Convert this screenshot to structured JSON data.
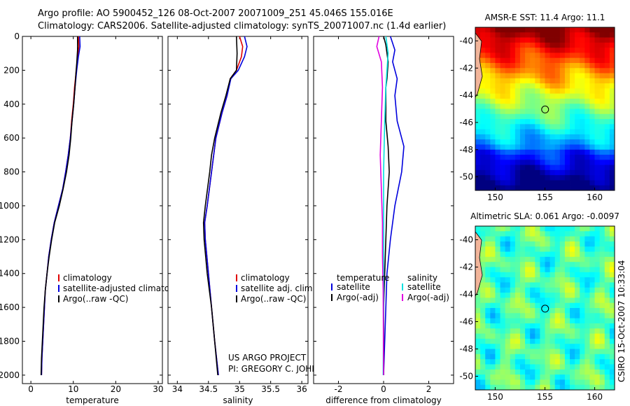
{
  "header": {
    "line1": "Argo profile: AO 5900452_126 08-Oct-2007 20071009_251 45.046S 155.016E",
    "line2": "Climatology: CARS2006. Satellite-adjusted climatology: synTS_20071007.nc (1.4d earlier)"
  },
  "credits": {
    "project": "US ARGO PROJECT",
    "pi": "PI: GREGORY C. JOHNSON",
    "stamp": "CSIRO 15-Oct-2007 10:33:04"
  },
  "colors": {
    "climatology": "#e00000",
    "satellite": "#0000dd",
    "argo": "#000000",
    "sal_satellite": "#00e0e0",
    "sal_argo": "#e000e0"
  },
  "chart_data": [
    {
      "type": "line",
      "id": "temperature",
      "xlabel": "temperature",
      "ylabel": "",
      "xlim": [
        -2,
        31
      ],
      "ylim": [
        2050,
        0
      ],
      "xticks": [
        0,
        10,
        20,
        30
      ],
      "yticks": [
        0,
        200,
        400,
        600,
        800,
        1000,
        1200,
        1400,
        1600,
        1800,
        2000
      ],
      "legend": [
        "climatology",
        "satellite-adjusted climatology",
        "Argo(..raw -QC)"
      ],
      "series": [
        {
          "name": "climatology",
          "color_key": "climatology",
          "points": [
            [
              11.2,
              0
            ],
            [
              11.3,
              60
            ],
            [
              11.0,
              120
            ],
            [
              10.7,
              200
            ],
            [
              10.3,
              300
            ],
            [
              10.0,
              400
            ],
            [
              9.6,
              500
            ],
            [
              9.3,
              600
            ],
            [
              8.8,
              700
            ],
            [
              8.2,
              800
            ],
            [
              7.5,
              900
            ],
            [
              6.5,
              1000
            ],
            [
              5.5,
              1100
            ],
            [
              4.8,
              1200
            ],
            [
              4.2,
              1300
            ],
            [
              3.8,
              1400
            ],
            [
              3.4,
              1500
            ],
            [
              3.2,
              1600
            ],
            [
              3.0,
              1700
            ],
            [
              2.8,
              1800
            ],
            [
              2.6,
              1900
            ],
            [
              2.5,
              2000
            ]
          ]
        },
        {
          "name": "satellite",
          "color_key": "satellite",
          "points": [
            [
              11.5,
              0
            ],
            [
              11.6,
              60
            ],
            [
              11.2,
              120
            ],
            [
              10.8,
              200
            ],
            [
              10.4,
              300
            ],
            [
              10.1,
              400
            ],
            [
              9.7,
              500
            ],
            [
              9.3,
              600
            ],
            [
              8.8,
              700
            ],
            [
              8.2,
              800
            ],
            [
              7.5,
              900
            ],
            [
              6.5,
              1000
            ],
            [
              5.5,
              1100
            ],
            [
              4.8,
              1200
            ],
            [
              4.2,
              1300
            ],
            [
              3.8,
              1400
            ],
            [
              3.4,
              1500
            ],
            [
              3.2,
              1600
            ],
            [
              3.0,
              1700
            ],
            [
              2.8,
              1800
            ],
            [
              2.6,
              1900
            ],
            [
              2.5,
              2000
            ]
          ]
        },
        {
          "name": "argo",
          "color_key": "argo",
          "points": [
            [
              11.0,
              0
            ],
            [
              11.0,
              80
            ],
            [
              10.8,
              160
            ],
            [
              10.6,
              220
            ],
            [
              10.4,
              300
            ],
            [
              10.1,
              400
            ],
            [
              9.7,
              500
            ],
            [
              9.4,
              600
            ],
            [
              9.0,
              700
            ],
            [
              8.4,
              800
            ],
            [
              7.6,
              900
            ],
            [
              6.7,
              1000
            ],
            [
              5.6,
              1100
            ],
            [
              4.9,
              1200
            ],
            [
              4.3,
              1300
            ],
            [
              3.8,
              1400
            ],
            [
              3.4,
              1500
            ],
            [
              3.1,
              1600
            ],
            [
              2.9,
              1700
            ],
            [
              2.7,
              1800
            ],
            [
              2.5,
              1900
            ],
            [
              2.4,
              2000
            ]
          ]
        }
      ]
    },
    {
      "type": "line",
      "id": "salinity",
      "xlabel": "salinity",
      "ylabel": "",
      "xlim": [
        33.85,
        36.1
      ],
      "ylim": [
        2050,
        0
      ],
      "xticks": [
        34,
        34.5,
        35,
        35.5,
        36
      ],
      "xtick_labels": [
        "34",
        "34.5",
        "35",
        "35.5",
        "36"
      ],
      "yticks": [
        0,
        200,
        400,
        600,
        800,
        1000,
        1200,
        1400,
        1600,
        1800,
        2000
      ],
      "legend": [
        "climatology",
        "satellite adj. clim.",
        "Argo(..raw -QC)"
      ],
      "series": [
        {
          "name": "climatology",
          "color_key": "climatology",
          "points": [
            [
              35.0,
              0
            ],
            [
              35.05,
              60
            ],
            [
              35.03,
              120
            ],
            [
              34.95,
              200
            ],
            [
              34.85,
              250
            ],
            [
              34.8,
              350
            ],
            [
              34.72,
              450
            ],
            [
              34.62,
              600
            ],
            [
              34.55,
              800
            ],
            [
              34.48,
              1000
            ],
            [
              34.44,
              1100
            ],
            [
              34.45,
              1200
            ],
            [
              34.5,
              1400
            ],
            [
              34.55,
              1600
            ],
            [
              34.6,
              1800
            ],
            [
              34.66,
              2000
            ]
          ]
        },
        {
          "name": "satellite",
          "color_key": "satellite",
          "points": [
            [
              35.08,
              0
            ],
            [
              35.12,
              60
            ],
            [
              35.08,
              120
            ],
            [
              34.98,
              200
            ],
            [
              34.86,
              250
            ],
            [
              34.8,
              350
            ],
            [
              34.72,
              450
            ],
            [
              34.62,
              600
            ],
            [
              34.55,
              800
            ],
            [
              34.48,
              1000
            ],
            [
              34.44,
              1100
            ],
            [
              34.45,
              1200
            ],
            [
              34.5,
              1400
            ],
            [
              34.55,
              1600
            ],
            [
              34.6,
              1800
            ],
            [
              34.66,
              2000
            ]
          ]
        },
        {
          "name": "argo",
          "color_key": "argo",
          "points": [
            [
              34.95,
              0
            ],
            [
              34.96,
              100
            ],
            [
              34.95,
              200
            ],
            [
              34.85,
              250
            ],
            [
              34.78,
              350
            ],
            [
              34.7,
              450
            ],
            [
              34.6,
              600
            ],
            [
              34.55,
              700
            ],
            [
              34.52,
              800
            ],
            [
              34.45,
              1000
            ],
            [
              34.42,
              1100
            ],
            [
              34.43,
              1200
            ],
            [
              34.48,
              1400
            ],
            [
              34.55,
              1600
            ],
            [
              34.6,
              1800
            ],
            [
              34.65,
              2000
            ]
          ]
        }
      ]
    },
    {
      "type": "line",
      "id": "difference",
      "xlabel": "difference from climatology",
      "ylabel": "",
      "xlim": [
        -3.1,
        3.1
      ],
      "ylim": [
        2050,
        0
      ],
      "xticks": [
        -2,
        0,
        2
      ],
      "yticks": [
        0,
        200,
        400,
        600,
        800,
        1000,
        1200,
        1400,
        1600,
        1800,
        2000
      ],
      "legend_titles": [
        "temperature",
        "salinity"
      ],
      "legend": [
        "satellite",
        "Argo(-adj)",
        "satellite",
        "Argo(-adj)"
      ],
      "series": [
        {
          "name": "temperature satellite",
          "color_key": "satellite",
          "points": [
            [
              0.3,
              0
            ],
            [
              0.5,
              80
            ],
            [
              0.4,
              150
            ],
            [
              0.6,
              250
            ],
            [
              0.5,
              350
            ],
            [
              0.6,
              500
            ],
            [
              0.9,
              650
            ],
            [
              0.8,
              800
            ],
            [
              0.5,
              1000
            ],
            [
              0.3,
              1200
            ],
            [
              0.15,
              1400
            ],
            [
              0.1,
              1600
            ],
            [
              0.05,
              1800
            ],
            [
              0.0,
              2000
            ]
          ]
        },
        {
          "name": "temperature Argo(-adj)",
          "color_key": "argo",
          "points": [
            [
              0.0,
              0
            ],
            [
              0.1,
              50
            ],
            [
              0.2,
              150
            ],
            [
              0.15,
              250
            ],
            [
              0.1,
              300
            ],
            [
              0.1,
              500
            ],
            [
              0.2,
              650
            ],
            [
              0.25,
              800
            ],
            [
              0.15,
              1000
            ],
            [
              0.1,
              1200
            ],
            [
              0.05,
              1400
            ],
            [
              0.0,
              1600
            ],
            [
              0.0,
              2000
            ]
          ]
        },
        {
          "name": "salinity satellite",
          "color_key": "sal_satellite",
          "points": [
            [
              0.1,
              0
            ],
            [
              0.2,
              100
            ],
            [
              0.15,
              200
            ],
            [
              0.1,
              300
            ],
            [
              0.05,
              500
            ],
            [
              0.0,
              800
            ],
            [
              0.0,
              1200
            ],
            [
              0.0,
              1600
            ],
            [
              -0.02,
              2000
            ]
          ]
        },
        {
          "name": "salinity Argo(-adj)",
          "color_key": "sal_argo",
          "points": [
            [
              -0.2,
              0
            ],
            [
              -0.3,
              60
            ],
            [
              -0.1,
              150
            ],
            [
              -0.05,
              300
            ],
            [
              -0.1,
              500
            ],
            [
              -0.15,
              700
            ],
            [
              -0.1,
              900
            ],
            [
              -0.05,
              1100
            ],
            [
              -0.05,
              1300
            ],
            [
              -0.02,
              1500
            ],
            [
              0.0,
              2000
            ]
          ]
        }
      ]
    },
    {
      "type": "heatmap",
      "id": "sst_map",
      "title": "AMSR-E SST: 11.4  Argo: 11.1",
      "xlim": [
        148,
        162
      ],
      "ylim": [
        -51,
        -39
      ],
      "xticks": [
        150,
        155,
        160
      ],
      "yticks": [
        -40,
        -42,
        -44,
        -46,
        -48,
        -50
      ],
      "marker": [
        155.016,
        -45.046
      ],
      "colormap": "jet",
      "colormap_range": [
        0,
        1
      ]
    },
    {
      "type": "heatmap",
      "id": "sla_map",
      "title": "Altimetric SLA: 0.061  Argo: -0.0097",
      "xlim": [
        148,
        162
      ],
      "ylim": [
        -51,
        -39
      ],
      "xticks": [
        150,
        155,
        160
      ],
      "yticks": [
        -40,
        -42,
        -44,
        -46,
        -48,
        -50
      ],
      "marker": [
        155.016,
        -45.046
      ],
      "colormap": "jet",
      "colormap_range": [
        0,
        1
      ]
    }
  ]
}
